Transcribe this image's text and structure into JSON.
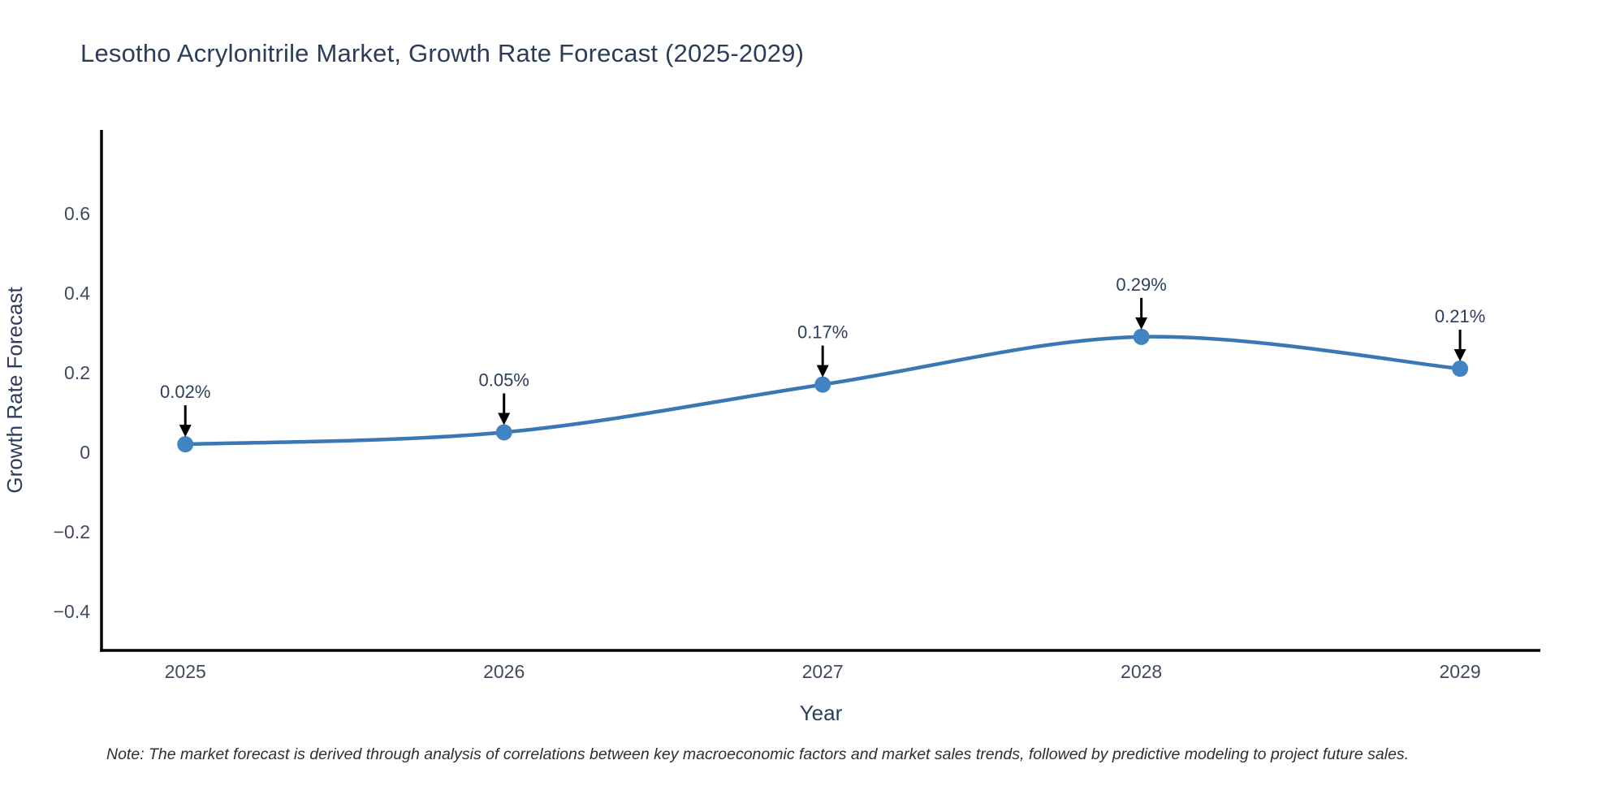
{
  "chart_data": {
    "type": "line",
    "line_shape": "spline",
    "title": "Lesotho Acrylonitrile Market, Growth Rate Forecast (2025-2029)",
    "xlabel": "Year",
    "ylabel": "Growth Rate Forecast",
    "x": [
      2025,
      2026,
      2027,
      2028,
      2029
    ],
    "values": [
      0.02,
      0.05,
      0.17,
      0.29,
      0.21
    ],
    "point_labels": [
      "0.02%",
      "0.05%",
      "0.17%",
      "0.29%",
      "0.21%"
    ],
    "x_tick_labels": [
      "2025",
      "2026",
      "2027",
      "2028",
      "2029"
    ],
    "y_ticks": [
      0.6,
      0.4,
      0.2,
      0,
      -0.2,
      -0.4
    ],
    "y_tick_labels": [
      "0.6",
      "0.4",
      "0.2",
      "0",
      "−0.2",
      "−0.4"
    ],
    "xlim": [
      2024.737,
      2029.252
    ],
    "ylim": [
      -0.498,
      0.81
    ],
    "grid": false,
    "legend": "none",
    "note": "Note: The market forecast is derived through analysis of correlations between key macroeconomic factors and market sales trends, followed by predictive modeling to project future sales.",
    "colors": {
      "line": "#3a78b4",
      "marker": "#4184c1",
      "axis": "#000000",
      "tick_text": "#3f4a5e",
      "axis_title_text": "#2b3d59",
      "annotation_text": "#2a3f5f",
      "arrow": "#000000",
      "title_text": "#2b3d59",
      "note_text": "#2f2f2f"
    }
  }
}
